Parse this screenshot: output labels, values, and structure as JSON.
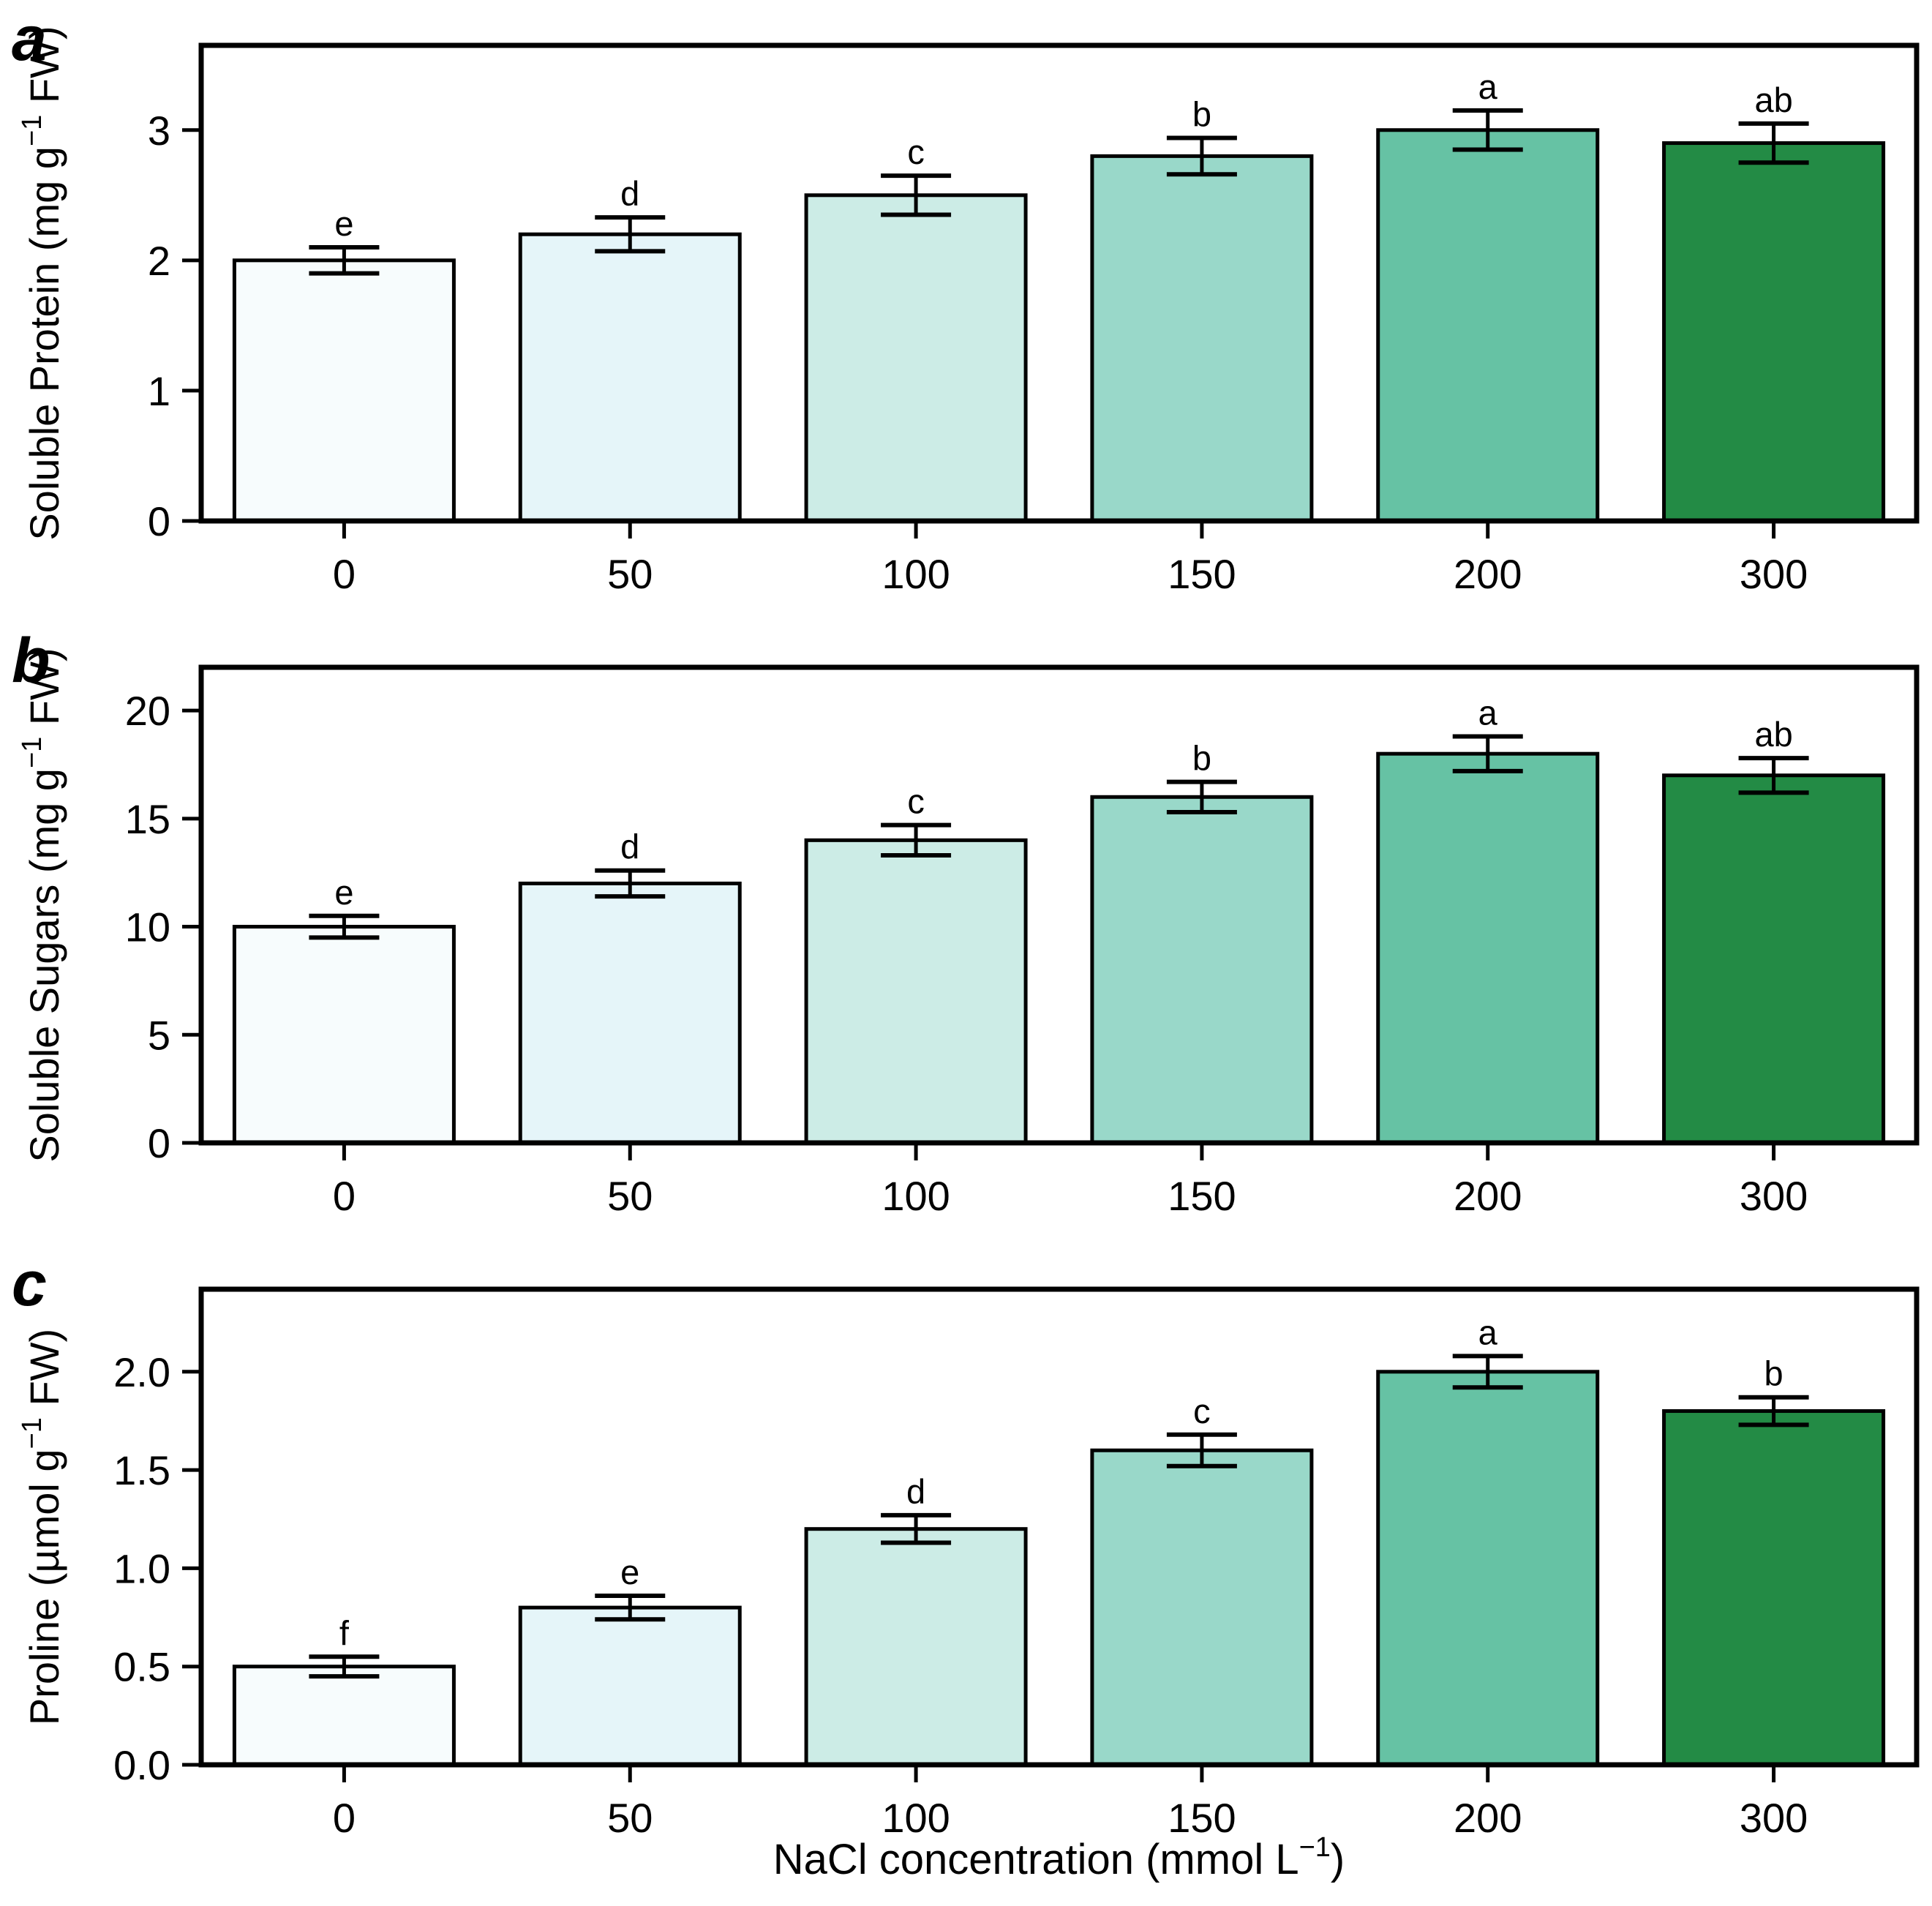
{
  "figure": {
    "background": "#ffffff",
    "axis_color": "#000000",
    "bar_colors": [
      "#f7fcfd",
      "#e5f5f9",
      "#ccece6",
      "#99d8c9",
      "#66c2a4",
      "#238b45"
    ],
    "x_axis_title_parts": [
      {
        "t": "NaCl concentration (mmol L"
      },
      {
        "t": "−1",
        "sup": true
      },
      {
        "t": ")"
      }
    ]
  },
  "chart_data": [
    {
      "type": "bar",
      "panel_label": "a",
      "ylabel_parts": [
        {
          "t": "Soluble Protein (mg g"
        },
        {
          "t": "−1",
          "sup": true
        },
        {
          "t": " FW)"
        }
      ],
      "categories": [
        "0",
        "50",
        "100",
        "150",
        "200",
        "300"
      ],
      "values": [
        2.0,
        2.2,
        2.5,
        2.8,
        3.0,
        2.9
      ],
      "errors": [
        0.1,
        0.13,
        0.15,
        0.14,
        0.15,
        0.15
      ],
      "sig_letters": [
        "e",
        "d",
        "c",
        "b",
        "a",
        "ab"
      ],
      "yticks": [
        0,
        1,
        2,
        3
      ],
      "ytick_labels": [
        "0",
        "1",
        "2",
        "3"
      ],
      "ylim": [
        0,
        3.65
      ],
      "grid": false,
      "legend": false
    },
    {
      "type": "bar",
      "panel_label": "b",
      "ylabel_parts": [
        {
          "t": "Soluble Sugars (mg g"
        },
        {
          "t": "−1",
          "sup": true
        },
        {
          "t": " FW)"
        }
      ],
      "categories": [
        "0",
        "50",
        "100",
        "150",
        "200",
        "300"
      ],
      "values": [
        10,
        12,
        14,
        16,
        18,
        17
      ],
      "errors": [
        0.5,
        0.6,
        0.7,
        0.7,
        0.8,
        0.8
      ],
      "sig_letters": [
        "e",
        "d",
        "c",
        "b",
        "a",
        "ab"
      ],
      "yticks": [
        0,
        5,
        10,
        15,
        20
      ],
      "ytick_labels": [
        "0",
        "5",
        "10",
        "15",
        "20"
      ],
      "ylim": [
        0,
        22
      ],
      "grid": false,
      "legend": false
    },
    {
      "type": "bar",
      "panel_label": "c",
      "ylabel_parts": [
        {
          "t": "Proline (µmol g"
        },
        {
          "t": "−1",
          "sup": true
        },
        {
          "t": " FW)"
        }
      ],
      "categories": [
        "0",
        "50",
        "100",
        "150",
        "200",
        "300"
      ],
      "values": [
        0.5,
        0.8,
        1.2,
        1.6,
        2.0,
        1.8
      ],
      "errors": [
        0.05,
        0.06,
        0.07,
        0.08,
        0.08,
        0.07
      ],
      "sig_letters": [
        "f",
        "e",
        "d",
        "c",
        "a",
        "b"
      ],
      "yticks": [
        0,
        0.5,
        1.0,
        1.5,
        2.0
      ],
      "ytick_labels": [
        "0.0",
        "0.5",
        "1.0",
        "1.5",
        "2.0"
      ],
      "ylim": [
        0,
        2.42
      ],
      "grid": false,
      "legend": false
    }
  ]
}
